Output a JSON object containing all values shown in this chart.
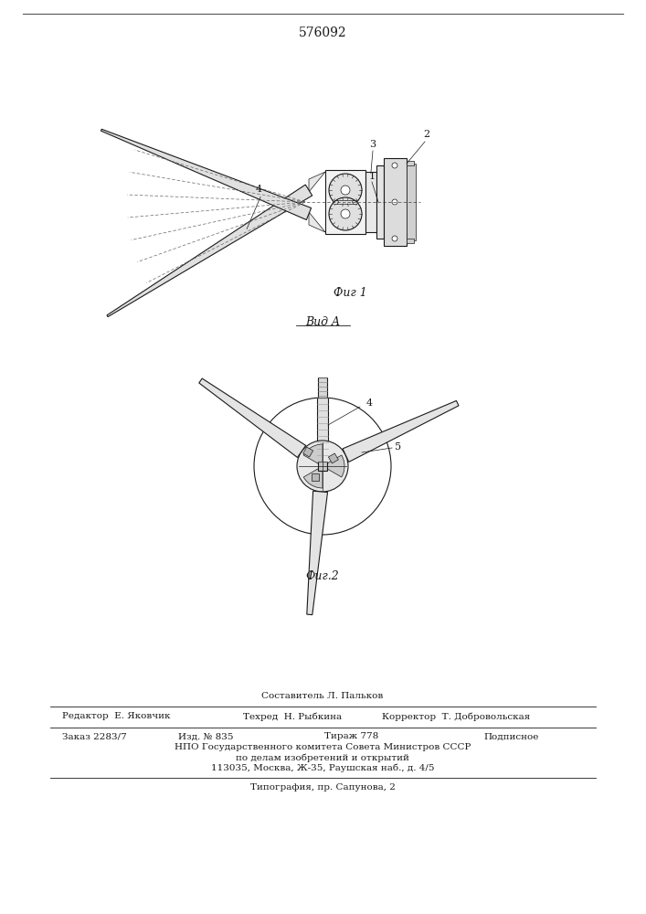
{
  "patent_number": "576092",
  "background_color": "#ffffff",
  "line_color": "#1a1a1a",
  "fig_width": 7.07,
  "fig_height": 10.0,
  "fig1_label": "Фиг 1",
  "fig2_label": "Фиг.2",
  "view_label": "Вид A",
  "составитель": "Составитель Л. Пальков",
  "редактор": "Редактор  Е. Яковчик",
  "техред": "Техред  Н. Рыбкина",
  "корректор": "Корректор  Т. Добровольская",
  "заказ": "Заказ 2283/7",
  "изд": "Изд. № 835",
  "тираж": "Тираж 778",
  "подписное": "Подписное",
  "нпо": "НПО Государственного комитета Совета Министров СССР",
  "делам": "по делам изобретений и открытий",
  "адрес": "113035, Москва, Ж-35, Раушская наб., д. 4/5",
  "типография": "Типография, пр. Сапунова, 2"
}
